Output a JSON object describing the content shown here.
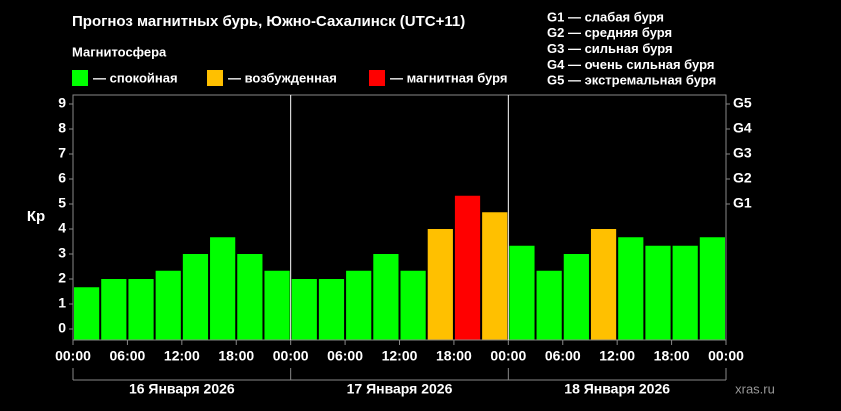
{
  "chart_data": {
    "type": "bar",
    "title": "Прогноз магнитных бурь, Южно-Сахалинск (UTC+11)",
    "subtitle": "Магнитосфера",
    "y_label": "Кр",
    "legend": [
      {
        "name": "— спокойная",
        "color": "#00ff00"
      },
      {
        "name": "— возбужденная",
        "color": "#ffc000"
      },
      {
        "name": "— магнитная буря",
        "color": "#ff0000"
      }
    ],
    "storm_legend": [
      "G1 — слабая буря",
      "G2 — средняя буря",
      "G3 — сильная буря",
      "G4 — очень сильная буря",
      "G5 — экстремальная буря"
    ],
    "x": [
      0,
      3,
      6,
      9,
      12,
      15,
      18,
      21,
      24,
      27,
      30,
      33,
      36,
      39,
      42,
      45,
      48,
      51,
      54,
      57,
      60,
      63,
      66,
      69
    ],
    "values": [
      1.67,
      2,
      2,
      2.33,
      3,
      3.67,
      3,
      2.33,
      2,
      2,
      2.33,
      3,
      2.33,
      4,
      5.33,
      4.67,
      3.33,
      2.33,
      3,
      4,
      3.67,
      3.33,
      3.33,
      3.67
    ],
    "colors": [
      "#00ff00",
      "#00ff00",
      "#00ff00",
      "#00ff00",
      "#00ff00",
      "#00ff00",
      "#00ff00",
      "#00ff00",
      "#00ff00",
      "#00ff00",
      "#00ff00",
      "#00ff00",
      "#00ff00",
      "#ffc000",
      "#ff0000",
      "#ffc000",
      "#00ff00",
      "#00ff00",
      "#00ff00",
      "#ffc000",
      "#00ff00",
      "#00ff00",
      "#00ff00",
      "#00ff00"
    ],
    "bar_width_hours": 3,
    "xlim": [
      0,
      72
    ],
    "xticks": [
      {
        "value": 0,
        "label": "00:00"
      },
      {
        "value": 6,
        "label": "06:00"
      },
      {
        "value": 12,
        "label": "12:00"
      },
      {
        "value": 18,
        "label": "18:00"
      },
      {
        "value": 24,
        "label": "00:00"
      },
      {
        "value": 30,
        "label": "06:00"
      },
      {
        "value": 36,
        "label": "12:00"
      },
      {
        "value": 42,
        "label": "18:00"
      },
      {
        "value": 48,
        "label": "00:00"
      },
      {
        "value": 54,
        "label": "06:00"
      },
      {
        "value": 60,
        "label": "12:00"
      },
      {
        "value": 66,
        "label": "18:00"
      },
      {
        "value": 72,
        "label": "00:00"
      }
    ],
    "day_separators": [
      24,
      48
    ],
    "days": [
      "16 Января 2026",
      "17 Января 2026",
      "18 Января 2026"
    ],
    "ylim": [
      -0.44,
      9.36
    ],
    "yticks": [
      0,
      1,
      2,
      3,
      4,
      5,
      6,
      7,
      8,
      9
    ],
    "y2lim": [
      -0.44,
      9.36
    ],
    "y2ticks": [
      {
        "value": 5,
        "label": "G1"
      },
      {
        "value": 6,
        "label": "G2"
      },
      {
        "value": 7,
        "label": "G3"
      },
      {
        "value": 8,
        "label": "G4"
      },
      {
        "value": 9,
        "label": "G5"
      }
    ],
    "watermark": "xras.ru"
  }
}
